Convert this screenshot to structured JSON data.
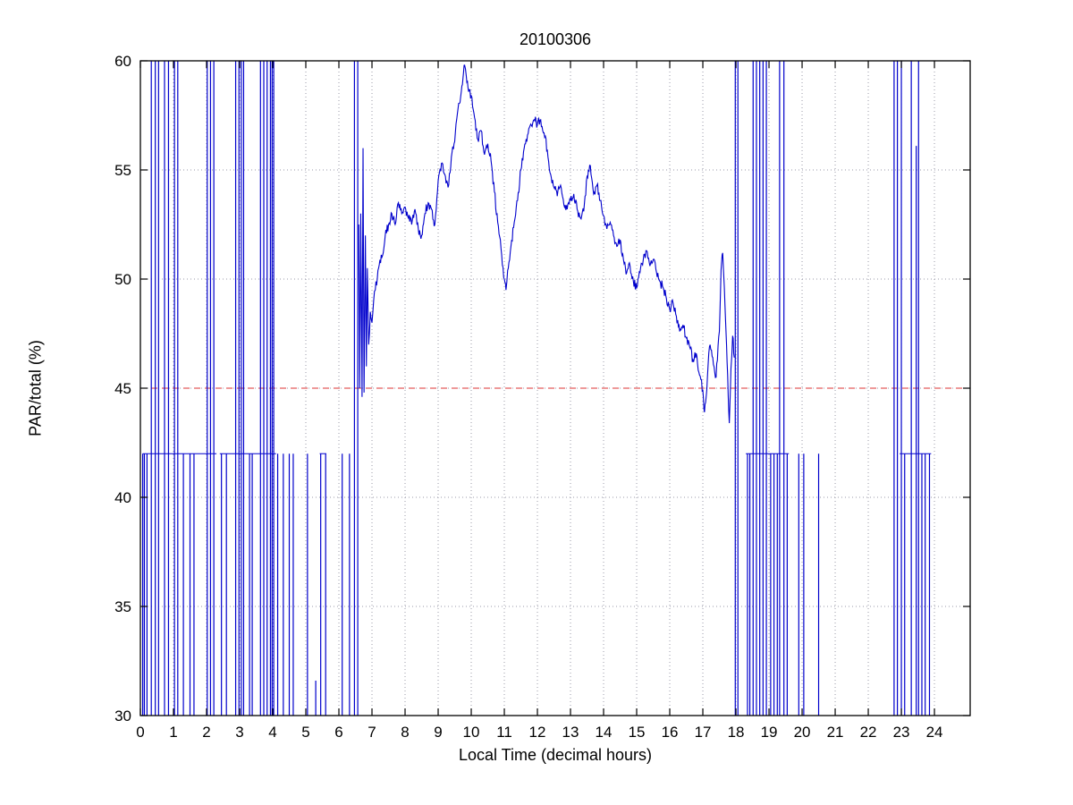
{
  "chart_data": {
    "type": "line",
    "title": "20100306",
    "xlabel": "Local Time (decimal hours)",
    "ylabel": "PAR/total (%)",
    "xlim": [
      0,
      25.08
    ],
    "ylim": [
      30,
      60
    ],
    "xticks": [
      0,
      1,
      2,
      3,
      4,
      5,
      6,
      7,
      8,
      9,
      10,
      11,
      12,
      13,
      14,
      15,
      16,
      17,
      18,
      19,
      20,
      21,
      22,
      23,
      24
    ],
    "yticks": [
      30,
      35,
      40,
      45,
      50,
      55,
      60
    ],
    "grid": true,
    "legend": "none",
    "colors": {
      "line": "#0000cc",
      "threshold": "#dd3333",
      "grid": "#9a9aa8",
      "axis": "#000000",
      "background": "#ffffff"
    },
    "threshold_line": {
      "y": 45,
      "style": "dashed"
    },
    "night_noise": {
      "baseline_value": 42,
      "baseline_segments": [
        [
          0.07,
          2.3
        ],
        [
          2.4,
          4.1
        ],
        [
          5.42,
          5.62
        ],
        [
          18.3,
          19.6
        ],
        [
          22.95,
          23.9
        ]
      ],
      "full_spikes": [
        0.33,
        0.45,
        0.55,
        0.73,
        0.85,
        1.03,
        1.13,
        2.02,
        2.12,
        2.22,
        2.88,
        2.98,
        3.05,
        3.12,
        3.63,
        3.73,
        3.83,
        3.93,
        3.98,
        4.03,
        6.47,
        6.57,
        17.98,
        18.06,
        18.52,
        18.62,
        18.72,
        18.82,
        18.92,
        19.32,
        19.45,
        22.78,
        22.88,
        23.0,
        23.3,
        23.52
      ],
      "partial_spikes": [
        0.07,
        0.12,
        0.2,
        1.3,
        1.5,
        1.62,
        2.45,
        2.6,
        3.3,
        3.38,
        4.15,
        4.32,
        4.5,
        4.62,
        5.05,
        5.45,
        5.6,
        6.1,
        6.32,
        18.35,
        18.42,
        19.05,
        19.15,
        19.25,
        19.55,
        19.9,
        20.05,
        20.5,
        23.1,
        23.62,
        23.72,
        23.85
      ],
      "custom_spikes": [
        [
          5.3,
          30,
          31.6
        ],
        [
          23.45,
          30,
          56.1
        ]
      ]
    },
    "day_curve": [
      [
        6.6,
        52.5
      ],
      [
        6.63,
        45.0
      ],
      [
        6.66,
        53.0
      ],
      [
        6.7,
        44.6
      ],
      [
        6.73,
        56.0
      ],
      [
        6.76,
        44.8
      ],
      [
        6.8,
        52.0
      ],
      [
        6.83,
        46.0
      ],
      [
        6.86,
        50.5
      ],
      [
        6.9,
        47.0
      ],
      [
        6.95,
        48.5
      ],
      [
        7.0,
        48.0
      ],
      [
        7.05,
        49.0
      ],
      [
        7.1,
        49.5
      ],
      [
        7.2,
        50.5
      ],
      [
        7.3,
        51.0
      ],
      [
        7.4,
        52.0
      ],
      [
        7.5,
        52.5
      ],
      [
        7.6,
        53.0
      ],
      [
        7.7,
        52.5
      ],
      [
        7.8,
        53.5
      ],
      [
        7.9,
        53.0
      ],
      [
        8.0,
        53.3
      ],
      [
        8.1,
        52.8
      ],
      [
        8.2,
        52.5
      ],
      [
        8.3,
        53.2
      ],
      [
        8.4,
        52.3
      ],
      [
        8.5,
        52.0
      ],
      [
        8.6,
        53.0
      ],
      [
        8.7,
        53.5
      ],
      [
        8.8,
        53.2
      ],
      [
        8.9,
        52.5
      ],
      [
        9.0,
        54.5
      ],
      [
        9.1,
        55.3
      ],
      [
        9.2,
        54.8
      ],
      [
        9.3,
        54.2
      ],
      [
        9.4,
        55.6
      ],
      [
        9.5,
        56.3
      ],
      [
        9.6,
        57.8
      ],
      [
        9.7,
        58.6
      ],
      [
        9.75,
        59.2
      ],
      [
        9.8,
        59.8
      ],
      [
        9.85,
        59.3
      ],
      [
        9.9,
        58.8
      ],
      [
        10.0,
        58.4
      ],
      [
        10.1,
        57.4
      ],
      [
        10.2,
        56.4
      ],
      [
        10.3,
        56.8
      ],
      [
        10.4,
        55.7
      ],
      [
        10.5,
        56.2
      ],
      [
        10.6,
        55.4
      ],
      [
        10.7,
        54.0
      ],
      [
        10.8,
        52.6
      ],
      [
        10.9,
        51.4
      ],
      [
        11.0,
        50.0
      ],
      [
        11.05,
        49.5
      ],
      [
        11.1,
        50.4
      ],
      [
        11.2,
        51.5
      ],
      [
        11.3,
        52.6
      ],
      [
        11.4,
        53.6
      ],
      [
        11.5,
        55.0
      ],
      [
        11.6,
        56.0
      ],
      [
        11.7,
        56.6
      ],
      [
        11.8,
        57.1
      ],
      [
        11.9,
        57.3
      ],
      [
        12.0,
        57.1
      ],
      [
        12.1,
        57.3
      ],
      [
        12.2,
        56.7
      ],
      [
        12.3,
        55.9
      ],
      [
        12.4,
        54.8
      ],
      [
        12.5,
        54.2
      ],
      [
        12.6,
        53.8
      ],
      [
        12.7,
        54.3
      ],
      [
        12.8,
        53.4
      ],
      [
        12.9,
        53.2
      ],
      [
        13.0,
        53.6
      ],
      [
        13.1,
        53.9
      ],
      [
        13.2,
        53.2
      ],
      [
        13.3,
        52.8
      ],
      [
        13.4,
        53.1
      ],
      [
        13.5,
        54.7
      ],
      [
        13.6,
        55.2
      ],
      [
        13.7,
        53.9
      ],
      [
        13.8,
        54.3
      ],
      [
        13.9,
        53.6
      ],
      [
        14.0,
        52.9
      ],
      [
        14.1,
        52.3
      ],
      [
        14.2,
        52.6
      ],
      [
        14.3,
        52.0
      ],
      [
        14.4,
        51.5
      ],
      [
        14.5,
        51.8
      ],
      [
        14.6,
        50.9
      ],
      [
        14.7,
        50.3
      ],
      [
        14.8,
        50.6
      ],
      [
        14.9,
        49.9
      ],
      [
        15.0,
        49.6
      ],
      [
        15.1,
        50.3
      ],
      [
        15.2,
        50.9
      ],
      [
        15.3,
        51.3
      ],
      [
        15.4,
        50.6
      ],
      [
        15.5,
        50.9
      ],
      [
        15.6,
        50.3
      ],
      [
        15.7,
        49.9
      ],
      [
        15.8,
        49.6
      ],
      [
        15.9,
        49.1
      ],
      [
        16.0,
        48.6
      ],
      [
        16.1,
        48.9
      ],
      [
        16.2,
        48.3
      ],
      [
        16.3,
        47.6
      ],
      [
        16.4,
        47.9
      ],
      [
        16.5,
        47.3
      ],
      [
        16.6,
        46.9
      ],
      [
        16.7,
        46.3
      ],
      [
        16.8,
        46.6
      ],
      [
        16.9,
        45.6
      ],
      [
        17.0,
        44.9
      ],
      [
        17.05,
        43.9
      ],
      [
        17.1,
        44.6
      ],
      [
        17.2,
        46.9
      ],
      [
        17.3,
        46.4
      ],
      [
        17.4,
        45.5
      ],
      [
        17.5,
        47.6
      ],
      [
        17.55,
        50.4
      ],
      [
        17.6,
        51.2
      ],
      [
        17.65,
        49.6
      ],
      [
        17.7,
        47.6
      ],
      [
        17.75,
        45.6
      ],
      [
        17.8,
        43.4
      ],
      [
        17.85,
        45.9
      ],
      [
        17.9,
        47.4
      ],
      [
        17.95,
        46.4
      ]
    ],
    "jitter": {
      "amplitude": 0.22,
      "seed": 20100306,
      "step": 0.02
    }
  }
}
